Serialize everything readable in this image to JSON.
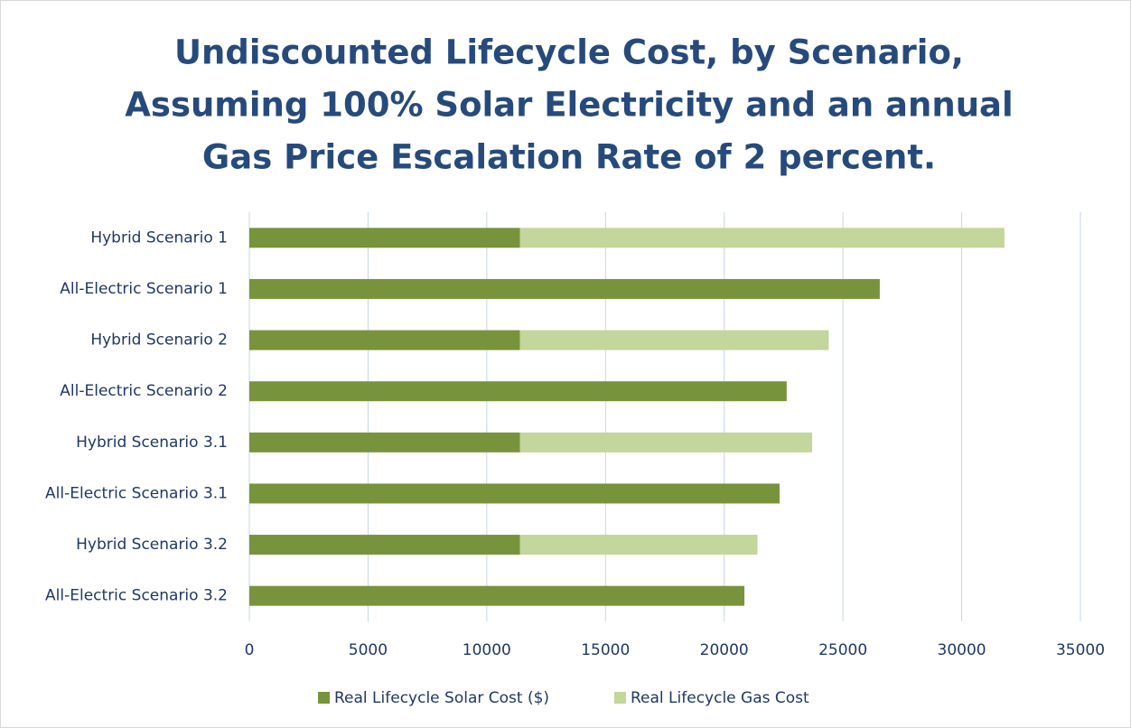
{
  "chart_data": {
    "type": "stacked_barh",
    "title": [
      "Undiscounted Lifecycle Cost, by Scenario,",
      "Assuming 100% Solar Electricity and an annual",
      "Gas Price Escalation Rate of 2 percent."
    ],
    "categories": [
      "Hybrid Scenario 1",
      "All-Electric Scenario 1",
      "Hybrid Scenario 2",
      "All-Electric Scenario 2",
      "Hybrid Scenario 3.1",
      "All-Electric Scenario 3.1",
      "Hybrid Scenario 3.2",
      "All-Electric Scenario 3.2"
    ],
    "series": [
      {
        "name": "Real Lifecycle Solar Cost ($)",
        "color": "#77933c",
        "values": [
          11400,
          26550,
          11400,
          22630,
          11400,
          22330,
          11400,
          20850
        ]
      },
      {
        "name": "Real Lifecycle Gas Cost",
        "color": "#c3d69b",
        "values": [
          20400,
          0,
          13000,
          0,
          12300,
          0,
          10000,
          0
        ]
      }
    ],
    "xlim": [
      0,
      35000
    ],
    "xticks": [
      0,
      5000,
      10000,
      15000,
      20000,
      25000,
      30000,
      35000
    ],
    "grid": true,
    "legend": "bottom"
  }
}
